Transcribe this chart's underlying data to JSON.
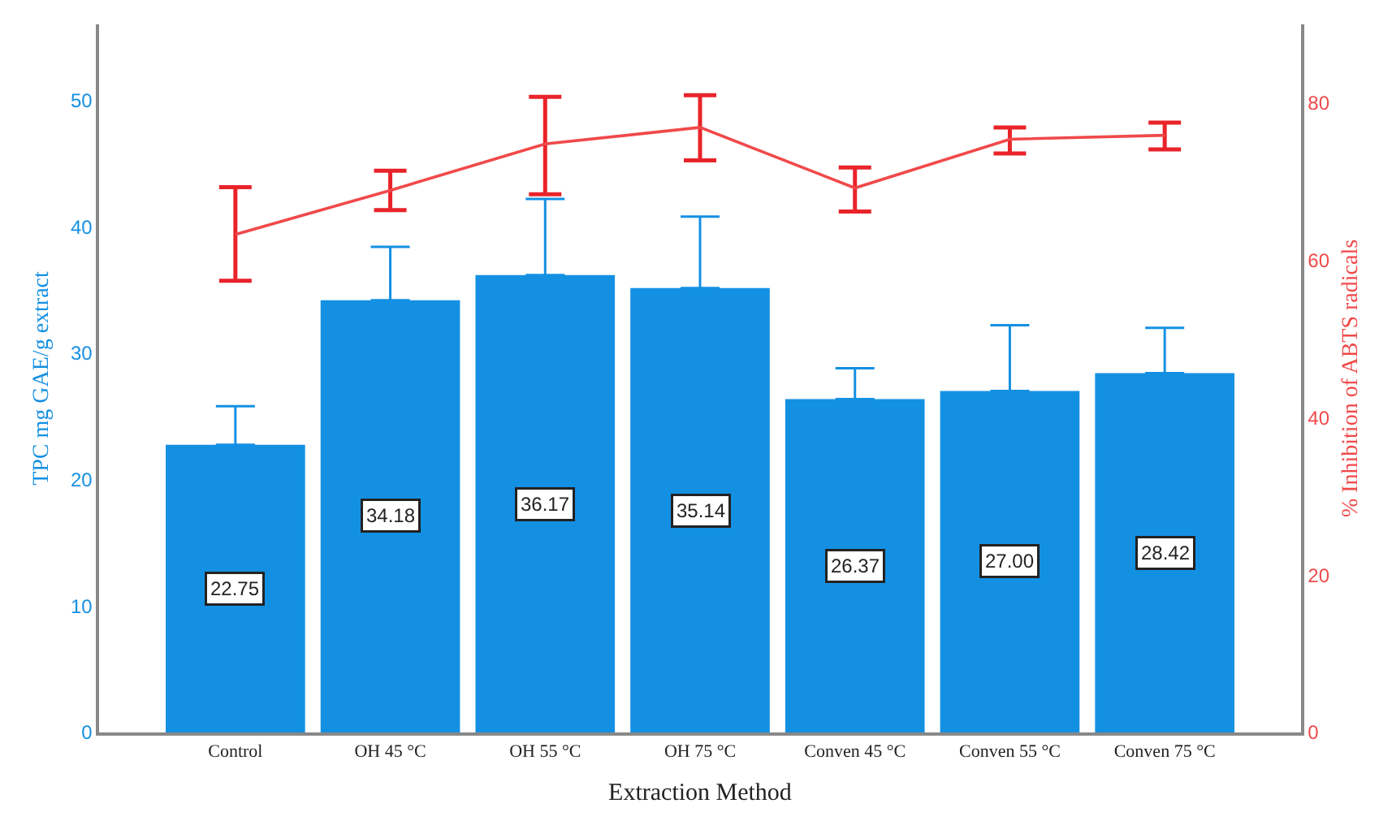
{
  "chart_data": {
    "type": "bar",
    "xlabel": "Extraction Method",
    "ylabel": "TPC mg GAE/g extract",
    "y2label": "% Inhibition of ABTS radicals",
    "categories": [
      "Control",
      "OH 45 °C",
      "OH 55 °C",
      "OH 75 °C",
      "Conven 45 °C",
      "Conven 55 °C",
      "Conven 75 °C"
    ],
    "series": [
      {
        "color": "#1490e3",
        "values": [
          22.75,
          34.18,
          36.17,
          35.14,
          26.37,
          27.0,
          28.42
        ],
        "value_labels": [
          "22.75",
          "34.18",
          "36.17",
          "35.14",
          "26.37",
          "27.00",
          "28.42"
        ],
        "errors": [
          [
            22.75,
            25.8
          ],
          [
            34.18,
            38.4
          ],
          [
            36.17,
            42.2
          ],
          [
            35.14,
            40.8
          ],
          [
            26.37,
            28.8
          ],
          [
            27.0,
            32.2
          ],
          [
            28.42,
            32.0
          ]
        ]
      },
      {
        "type": "line",
        "axis": "y2",
        "color": "#f0494a",
        "values": [
          63.3,
          68.9,
          74.8,
          76.9,
          69.2,
          75.4,
          75.9
        ],
        "errors": [
          [
            57.4,
            69.3
          ],
          [
            66.4,
            71.4
          ],
          [
            68.4,
            80.8
          ],
          [
            72.7,
            81.0
          ],
          [
            66.2,
            71.8
          ],
          [
            73.6,
            76.9
          ],
          [
            74.1,
            77.5
          ]
        ]
      }
    ],
    "ylim": [
      0,
      56
    ],
    "yticks": [
      0,
      10,
      20,
      30,
      40,
      50
    ],
    "y2lim": [
      0,
      90
    ],
    "y2ticks": [
      0,
      20,
      40,
      60,
      80
    ],
    "legend": false,
    "marker": "none",
    "line_style": "solid"
  }
}
